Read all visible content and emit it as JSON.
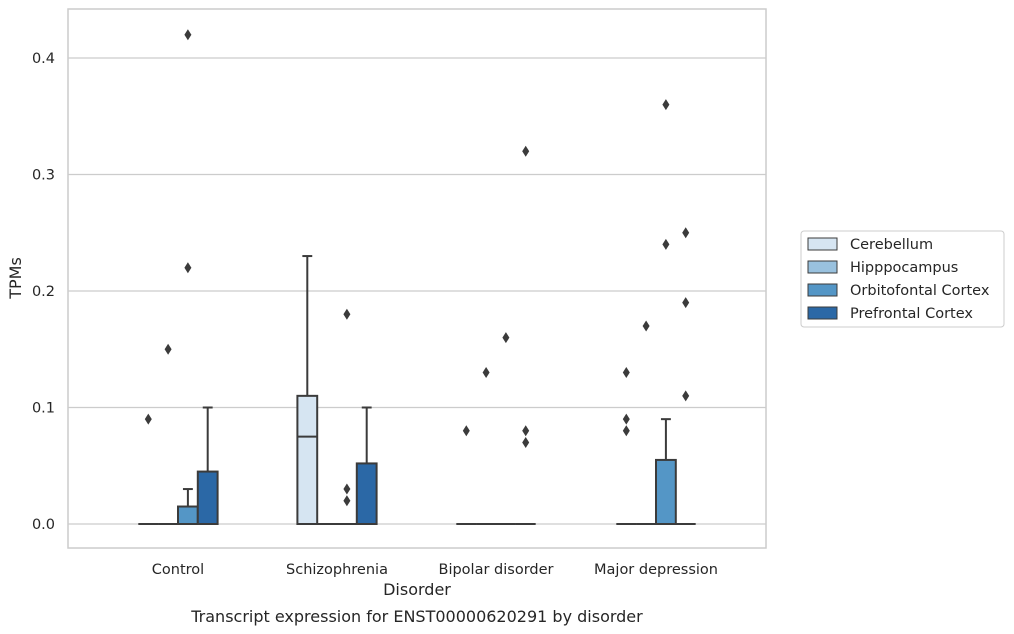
{
  "caption": "Transcript expression for ENST00000620291 by disorder",
  "chart_data": {
    "type": "box",
    "xlabel": "Disorder",
    "ylabel": "TPMs",
    "ylim": [
      -0.02,
      0.44
    ],
    "yticks": [
      0.0,
      0.1,
      0.2,
      0.3,
      0.4
    ],
    "ytick_labels": [
      "0.0",
      "0.1",
      "0.2",
      "0.3",
      "0.4"
    ],
    "grid": "horizontal",
    "legend_position": "right",
    "categories": [
      "Control",
      "Schizophrenia",
      "Bipolar disorder",
      "Major depression"
    ],
    "series": [
      {
        "name": "Cerebellum",
        "color": "#d6e5f2",
        "boxes": [
          {
            "q1": 0,
            "median": 0,
            "q3": 0,
            "whisker_low": 0,
            "whisker_high": 0,
            "outliers": [
              0.09
            ]
          },
          {
            "q1": 0,
            "median": 0.075,
            "q3": 0.11,
            "whisker_low": 0,
            "whisker_high": 0.23,
            "outliers": []
          },
          {
            "q1": 0,
            "median": 0,
            "q3": 0,
            "whisker_low": 0,
            "whisker_high": 0,
            "outliers": [
              0.08
            ]
          },
          {
            "q1": 0,
            "median": 0,
            "q3": 0,
            "whisker_low": 0,
            "whisker_high": 0,
            "outliers": [
              0.08,
              0.09,
              0.13
            ]
          }
        ]
      },
      {
        "name": "Hipppocampus",
        "color": "#99c1de",
        "boxes": [
          {
            "q1": 0,
            "median": 0,
            "q3": 0,
            "whisker_low": 0,
            "whisker_high": 0,
            "outliers": [
              0.15
            ]
          },
          {
            "q1": 0,
            "median": 0,
            "q3": 0,
            "whisker_low": 0,
            "whisker_high": 0,
            "outliers": []
          },
          {
            "q1": 0,
            "median": 0,
            "q3": 0,
            "whisker_low": 0,
            "whisker_high": 0,
            "outliers": [
              0.13
            ]
          },
          {
            "q1": 0,
            "median": 0,
            "q3": 0,
            "whisker_low": 0,
            "whisker_high": 0,
            "outliers": [
              0.17
            ]
          }
        ]
      },
      {
        "name": "Orbitofontal Cortex",
        "color": "#5496c6",
        "boxes": [
          {
            "q1": 0,
            "median": 0,
            "q3": 0.015,
            "whisker_low": 0,
            "whisker_high": 0.03,
            "outliers": [
              0.22,
              0.42
            ]
          },
          {
            "q1": 0,
            "median": 0,
            "q3": 0,
            "whisker_low": 0,
            "whisker_high": 0,
            "outliers": [
              0.02,
              0.03,
              0.18
            ]
          },
          {
            "q1": 0,
            "median": 0,
            "q3": 0,
            "whisker_low": 0,
            "whisker_high": 0,
            "outliers": [
              0.16
            ]
          },
          {
            "q1": 0,
            "median": 0,
            "q3": 0.055,
            "whisker_low": 0,
            "whisker_high": 0.09,
            "outliers": [
              0.24,
              0.36
            ]
          }
        ]
      },
      {
        "name": "Prefrontal Cortex",
        "color": "#2b68a6",
        "boxes": [
          {
            "q1": 0,
            "median": 0,
            "q3": 0.045,
            "whisker_low": 0,
            "whisker_high": 0.1,
            "outliers": []
          },
          {
            "q1": 0,
            "median": 0,
            "q3": 0.052,
            "whisker_low": 0,
            "whisker_high": 0.1,
            "outliers": []
          },
          {
            "q1": 0,
            "median": 0,
            "q3": 0,
            "whisker_low": 0,
            "whisker_high": 0,
            "outliers": [
              0.07,
              0.08,
              0.32
            ]
          },
          {
            "q1": 0,
            "median": 0,
            "q3": 0,
            "whisker_low": 0,
            "whisker_high": 0,
            "outliers": [
              0.11,
              0.19,
              0.25
            ]
          }
        ]
      }
    ]
  }
}
